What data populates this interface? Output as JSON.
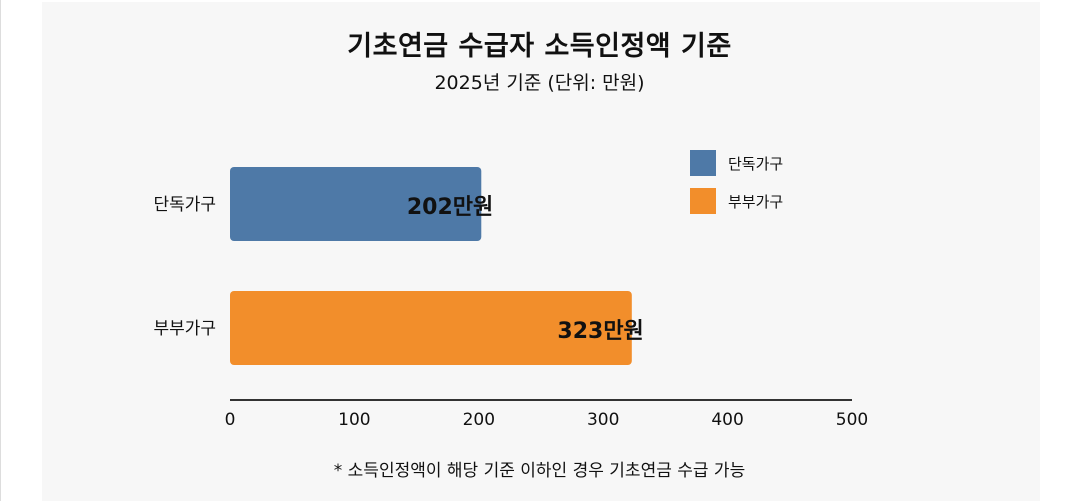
{
  "chart_data": {
    "type": "bar",
    "orientation": "horizontal",
    "title": "기초연금 수급자 소득인정액 기준",
    "subtitle": "2025년 기준 (단위: 만원)",
    "categories": [
      "단독가구",
      "부부가구"
    ],
    "values": [
      202,
      323
    ],
    "data_labels": [
      "202만원",
      "323만원"
    ],
    "colors": [
      "#4e79a7",
      "#f28e2b"
    ],
    "xlim": [
      0,
      500
    ],
    "xticks": [
      0,
      100,
      200,
      300,
      400,
      500
    ],
    "grid": false,
    "legend": {
      "placement": "top-right",
      "entries": [
        "단독가구",
        "부부가구"
      ]
    },
    "footnote": "* 소득인정액이 해당 기준 이하인 경우 기초연금 수급 가능"
  }
}
